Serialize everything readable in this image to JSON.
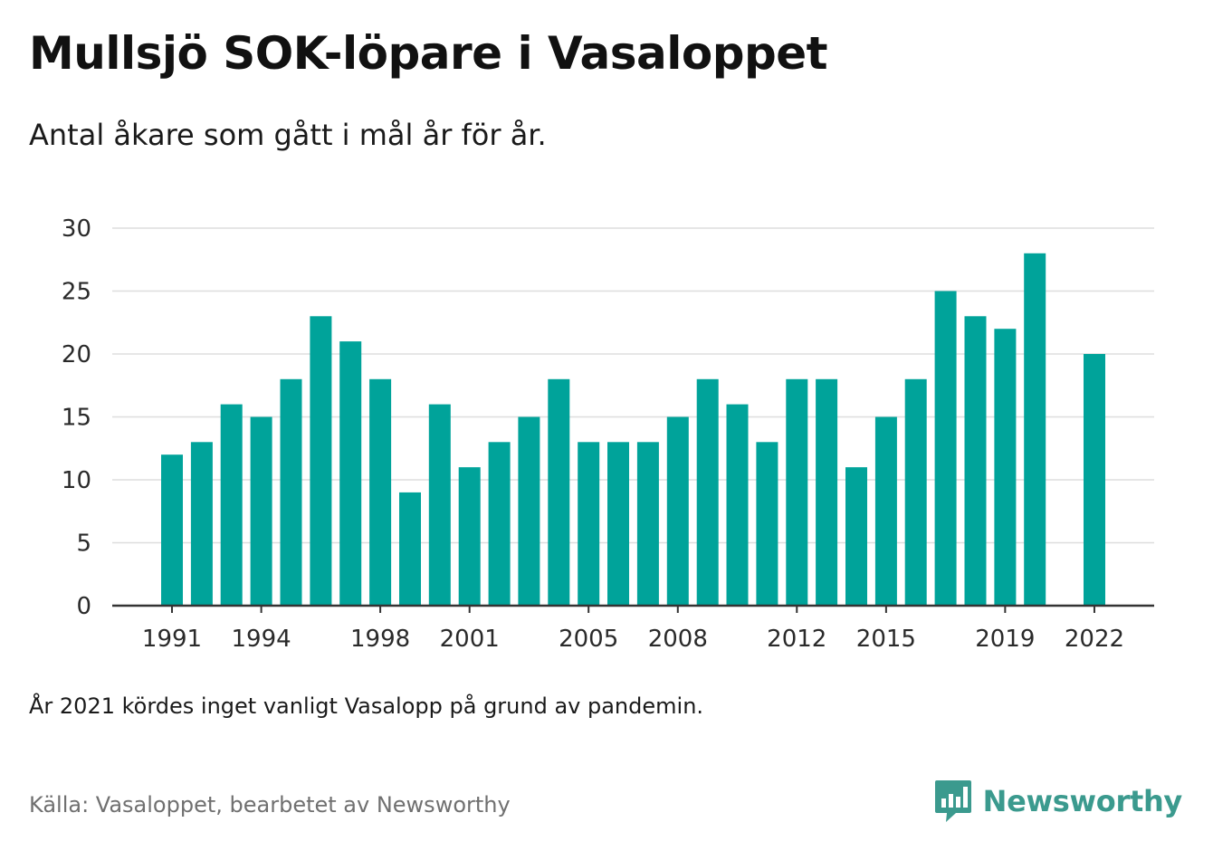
{
  "header": {
    "title": "Mullsjö SOK-löpare i Vasaloppet",
    "subtitle": "Antal åkare som gått i mål år för år."
  },
  "footer": {
    "note": "År 2021 kördes inget vanligt Vasalopp på grund av pandemin.",
    "source": "Källa: Vasaloppet, bearbetet av Newsworthy",
    "brand": "Newsworthy",
    "brand_icon": "newsworthy-logo-icon",
    "brand_color": "#3b9a8e"
  },
  "chart_data": {
    "type": "bar",
    "title": "Mullsjö SOK-löpare i Vasaloppet",
    "subtitle": "Antal åkare som gått i mål år för år.",
    "xlabel": "",
    "ylabel": "",
    "bar_color": "#00a39a",
    "grid": true,
    "ylim": [
      0,
      30
    ],
    "yticks": [
      0,
      5,
      10,
      15,
      20,
      25,
      30
    ],
    "xticks": [
      1991,
      1994,
      1998,
      2001,
      2005,
      2008,
      2012,
      2015,
      2019,
      2022
    ],
    "categories": [
      1991,
      1992,
      1993,
      1994,
      1995,
      1996,
      1997,
      1998,
      1999,
      2000,
      2001,
      2002,
      2003,
      2004,
      2005,
      2006,
      2007,
      2008,
      2009,
      2010,
      2011,
      2012,
      2013,
      2014,
      2015,
      2016,
      2017,
      2018,
      2019,
      2020,
      2021,
      2022
    ],
    "values": [
      12,
      13,
      16,
      15,
      18,
      23,
      21,
      18,
      9,
      16,
      11,
      13,
      15,
      18,
      13,
      13,
      13,
      15,
      18,
      16,
      13,
      18,
      18,
      11,
      15,
      18,
      25,
      23,
      22,
      28,
      null,
      20
    ]
  }
}
